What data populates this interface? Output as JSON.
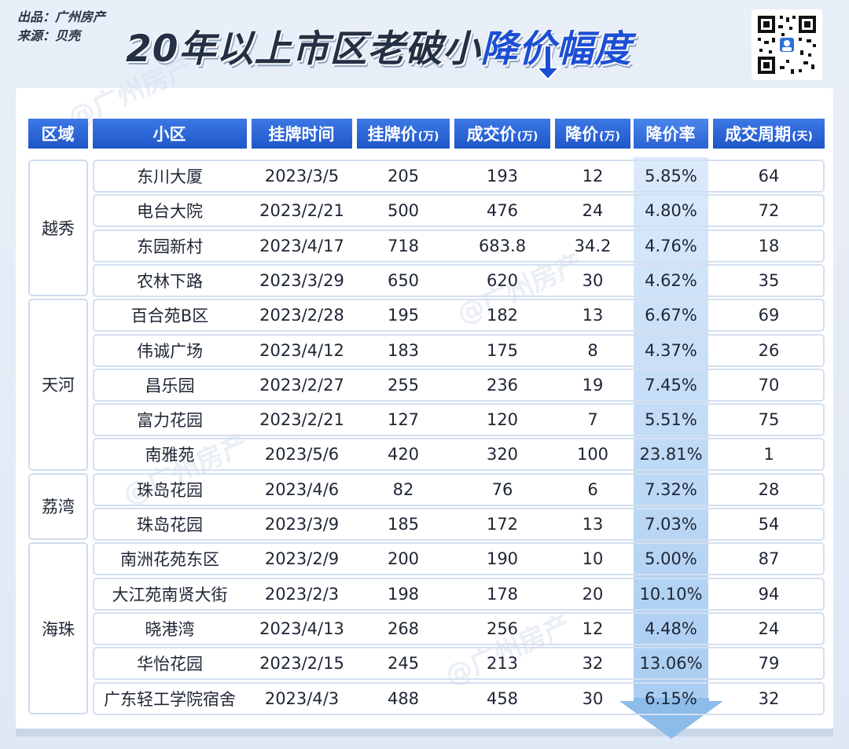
{
  "credits": {
    "line1": "出品：广州房产",
    "line2": "来源：贝壳"
  },
  "title": {
    "main": "20年以上市区老破小",
    "accent": "降价幅度"
  },
  "watermark": "@广州房产",
  "colors": {
    "header": "#1f56c8",
    "accent": "#1d4fd4",
    "rate_column": "#a9cdf1",
    "border": "#d3dff0"
  },
  "icons": [
    "qr-code-icon",
    "down-arrow-icon"
  ],
  "table": {
    "headers": [
      {
        "label": "区域",
        "unit": ""
      },
      {
        "label": "小区",
        "unit": ""
      },
      {
        "label": "挂牌时间",
        "unit": ""
      },
      {
        "label": "挂牌价",
        "unit": "(万)"
      },
      {
        "label": "成交价",
        "unit": "(万)"
      },
      {
        "label": "降价",
        "unit": "(万)"
      },
      {
        "label": "降价率",
        "unit": ""
      },
      {
        "label": "成交周期",
        "unit": "(天)"
      }
    ],
    "regions": [
      {
        "name": "越秀",
        "rows": 4
      },
      {
        "name": "天河",
        "rows": 5
      },
      {
        "name": "荔湾",
        "rows": 2
      },
      {
        "name": "海珠",
        "rows": 5
      }
    ],
    "rows": [
      {
        "name": "东川大厦",
        "date": "2023/3/5",
        "list": "205",
        "deal": "193",
        "cut": "12",
        "rate": "5.85%",
        "days": "64"
      },
      {
        "name": "电台大院",
        "date": "2023/2/21",
        "list": "500",
        "deal": "476",
        "cut": "24",
        "rate": "4.80%",
        "days": "72"
      },
      {
        "name": "东园新村",
        "date": "2023/4/17",
        "list": "718",
        "deal": "683.8",
        "cut": "34.2",
        "rate": "4.76%",
        "days": "18"
      },
      {
        "name": "农林下路",
        "date": "2023/3/29",
        "list": "650",
        "deal": "620",
        "cut": "30",
        "rate": "4.62%",
        "days": "35"
      },
      {
        "name": "百合苑B区",
        "date": "2023/2/28",
        "list": "195",
        "deal": "182",
        "cut": "13",
        "rate": "6.67%",
        "days": "69"
      },
      {
        "name": "伟诚广场",
        "date": "2023/4/12",
        "list": "183",
        "deal": "175",
        "cut": "8",
        "rate": "4.37%",
        "days": "26"
      },
      {
        "name": "昌乐园",
        "date": "2023/2/27",
        "list": "255",
        "deal": "236",
        "cut": "19",
        "rate": "7.45%",
        "days": "70"
      },
      {
        "name": "富力花园",
        "date": "2023/2/21",
        "list": "127",
        "deal": "120",
        "cut": "7",
        "rate": "5.51%",
        "days": "75"
      },
      {
        "name": "南雅苑",
        "date": "2023/5/6",
        "list": "420",
        "deal": "320",
        "cut": "100",
        "rate": "23.81%",
        "days": "1"
      },
      {
        "name": "珠岛花园",
        "date": "2023/4/6",
        "list": "82",
        "deal": "76",
        "cut": "6",
        "rate": "7.32%",
        "days": "28"
      },
      {
        "name": "珠岛花园",
        "date": "2023/3/9",
        "list": "185",
        "deal": "172",
        "cut": "13",
        "rate": "7.03%",
        "days": "54"
      },
      {
        "name": "南洲花苑东区",
        "date": "2023/2/9",
        "list": "200",
        "deal": "190",
        "cut": "10",
        "rate": "5.00%",
        "days": "87"
      },
      {
        "name": "大江苑南贤大街",
        "date": "2023/2/3",
        "list": "198",
        "deal": "178",
        "cut": "20",
        "rate": "10.10%",
        "days": "94"
      },
      {
        "name": "晓港湾",
        "date": "2023/4/13",
        "list": "268",
        "deal": "256",
        "cut": "12",
        "rate": "4.48%",
        "days": "24"
      },
      {
        "name": "华怡花园",
        "date": "2023/2/15",
        "list": "245",
        "deal": "213",
        "cut": "32",
        "rate": "13.06%",
        "days": "79"
      },
      {
        "name": "广东轻工学院宿舍",
        "date": "2023/4/3",
        "list": "488",
        "deal": "458",
        "cut": "30",
        "rate": "6.15%",
        "days": "32"
      }
    ]
  }
}
